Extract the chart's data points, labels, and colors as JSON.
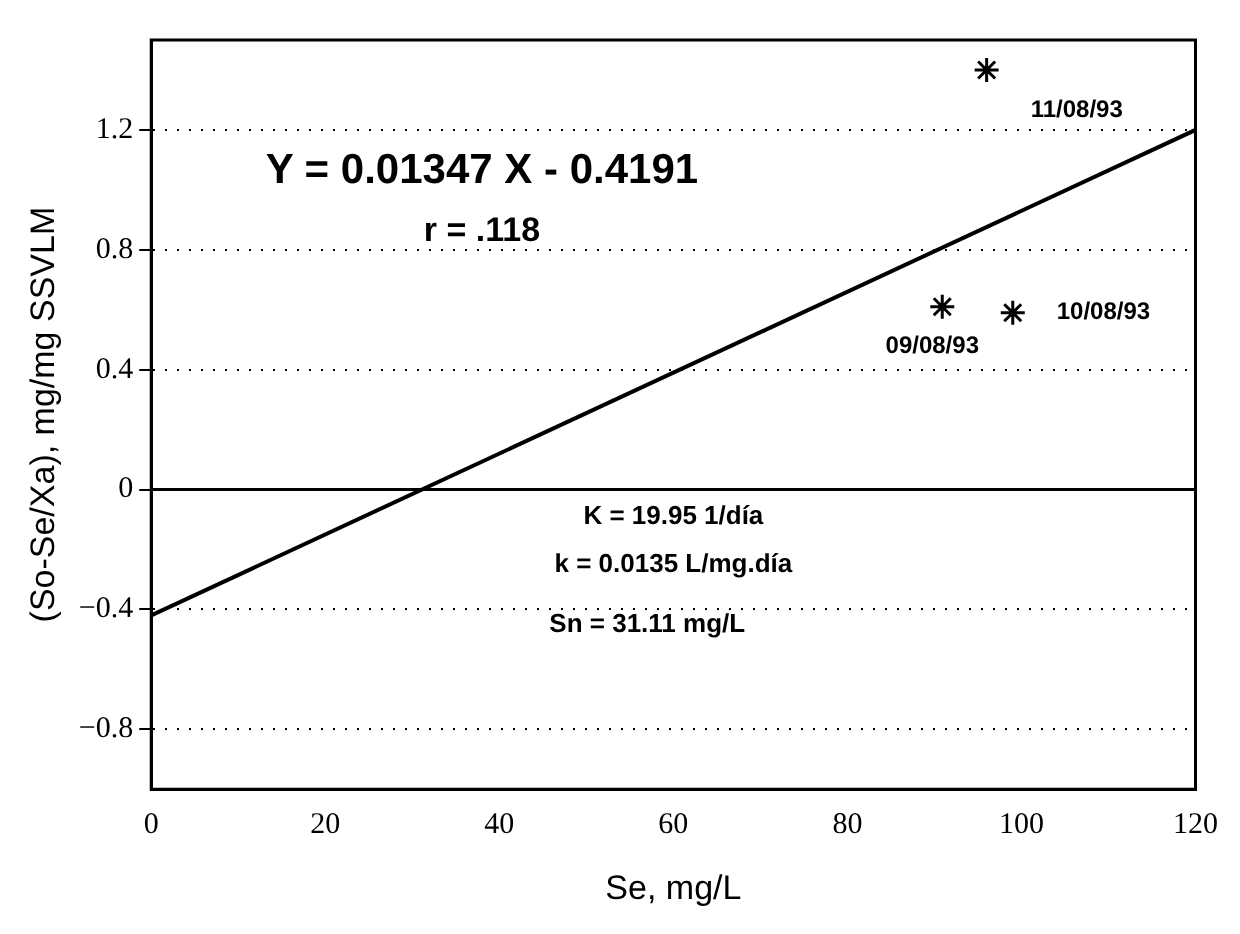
{
  "chart_data": {
    "type": "scatter",
    "xlabel": "Se, mg/L",
    "ylabel": "(So-Se/Xa), mg/mg SSVLM",
    "series": [
      {
        "color": "#000000",
        "x": [
          90.9,
          99.0,
          96.0
        ],
        "values": [
          0.61,
          0.59,
          1.4
        ],
        "marker": "cross"
      },
      {
        "type": "line",
        "color": "#000000",
        "x": [
          0,
          120
        ],
        "values": [
          -0.42,
          1.2
        ],
        "marker": "none",
        "line_style": "solid"
      }
    ],
    "xlim": [
      0,
      120
    ],
    "xticks": [
      0,
      20,
      40,
      60,
      80,
      100,
      120
    ],
    "ylim": [
      -1.0,
      1.5
    ],
    "yticks": [
      {
        "value": -0.8,
        "label": "−0.8"
      },
      {
        "value": -0.4,
        "label": "−0.4"
      },
      0,
      0.4,
      0.8,
      1.2
    ],
    "grid": "y",
    "ref_lines": [
      {
        "axis": "y",
        "value": 0,
        "color": "#000000",
        "line_style": "solid"
      }
    ],
    "annotations": [
      {
        "text": "09/08/93",
        "x": 90.9,
        "y": 0.61
      },
      {
        "text": "10/08/93",
        "x": 99.0,
        "y": 0.59
      },
      {
        "text": "11/08/93",
        "x": 96.0,
        "y": 1.4
      },
      "Y = 0.01347 X - 0.4191",
      "r = .118",
      "K = 19.95 1/día",
      "k = 0.0135 L/mg.día",
      "Sn = 31.11 mg/L"
    ]
  }
}
